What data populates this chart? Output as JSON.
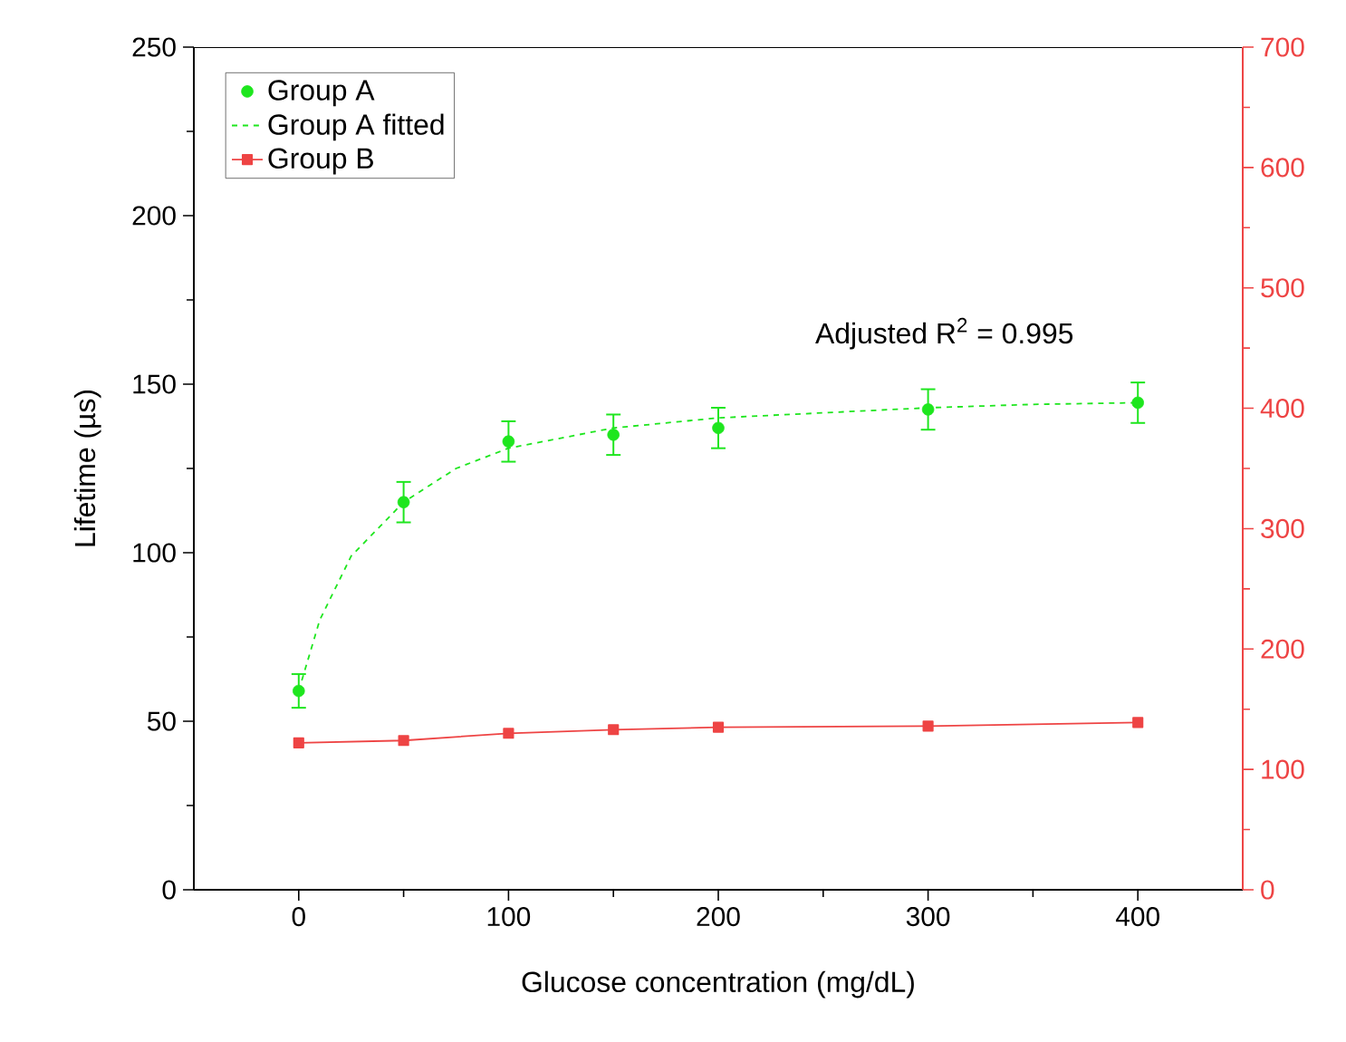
{
  "chart_data": {
    "type": "scatter",
    "xlabel": "Glucose concentration (mg/dL)",
    "ylabel": "Lifetime (µs)",
    "xlim": [
      -50,
      450
    ],
    "xticks": [
      0,
      100,
      200,
      300,
      400
    ],
    "ylim": [
      0,
      250
    ],
    "yticks": [
      0,
      50,
      100,
      150,
      200,
      250
    ],
    "y2lim": [
      0,
      700
    ],
    "y2ticks": [
      0,
      100,
      200,
      300,
      400,
      500,
      600,
      700
    ],
    "legend": "top left",
    "grid": false,
    "annotations": [
      "Adjusted R$^{2}$ = 0.995"
    ],
    "series": [
      {
        "name": "Group A",
        "color": "#1ee61e",
        "marker": "circle",
        "x": [
          0,
          50,
          100,
          150,
          200,
          300,
          400
        ],
        "values": [
          59,
          115,
          133,
          135,
          137,
          142.5,
          144.5
        ],
        "errors": [
          5,
          6,
          6,
          6,
          6,
          6,
          6
        ]
      },
      {
        "name": "Group A fitted",
        "type": "line",
        "color": "#1ee61e",
        "marker": "none",
        "line_style": "dashed",
        "x": [
          0,
          10,
          25,
          50,
          75,
          100,
          150,
          200,
          250,
          300,
          350,
          400
        ],
        "values": [
          59,
          80,
          99,
          115,
          125,
          131,
          137,
          140,
          141.5,
          143,
          144,
          144.5
        ]
      },
      {
        "name": "Group B",
        "type": "line",
        "axis": "y2",
        "color": "#ee4444",
        "marker": "square",
        "line_style": "solid",
        "x": [
          0,
          50,
          100,
          150,
          200,
          300,
          400
        ],
        "values": [
          122,
          124,
          130,
          133,
          135,
          136,
          139
        ]
      }
    ]
  }
}
